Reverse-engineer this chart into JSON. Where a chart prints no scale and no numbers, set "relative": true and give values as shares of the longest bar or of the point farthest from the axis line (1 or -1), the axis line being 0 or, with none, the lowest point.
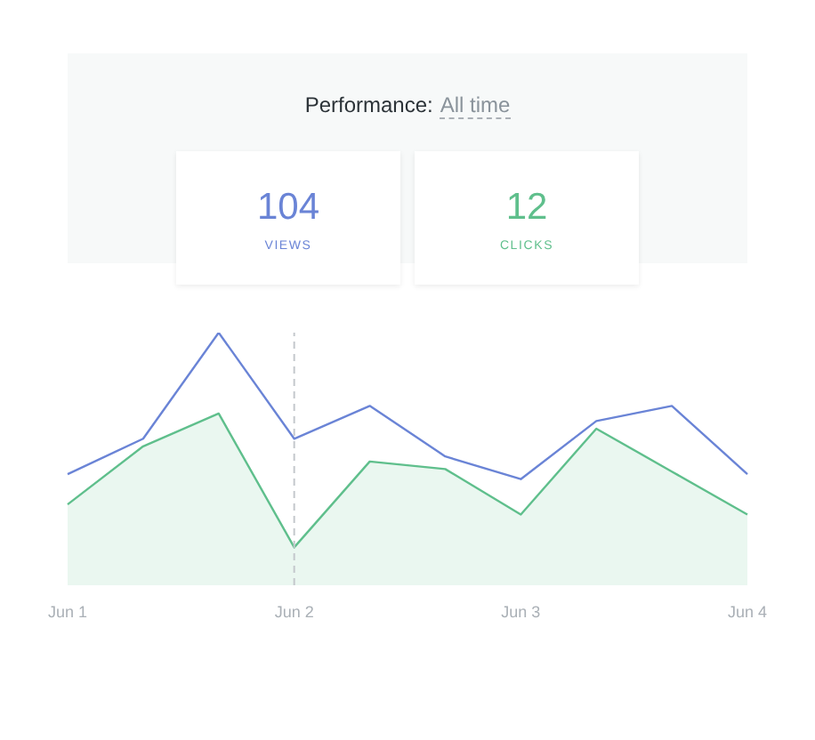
{
  "chart_data": {
    "type": "line",
    "title": "Performance:",
    "subtitle": "All time",
    "relative": true,
    "legend": "top",
    "marker": "none",
    "categories": [
      "Jun 1",
      null,
      null,
      "Jun 2",
      null,
      null,
      "Jun 3",
      null,
      null,
      "Jun 4"
    ],
    "annotations": [
      "104",
      "12"
    ],
    "ref_lines": [
      {
        "axis": "x",
        "value": "Jun 2",
        "line_style": "dashed",
        "color": "#c4c8cc"
      }
    ],
    "series": [
      {
        "name": "VIEWS",
        "color": "#6a84d6",
        "values": [
          0.44,
          0.58,
          1,
          0.58,
          0.71,
          0.51,
          0.42,
          0.65,
          0.71,
          0.44
        ]
      },
      {
        "name": "CLICKS",
        "type": "area",
        "color": "#5fbf8c",
        "values": [
          0.32,
          0.55,
          0.68,
          0.15,
          0.49,
          0.46,
          0.28,
          0.62,
          0.45,
          0.28
        ]
      }
    ]
  }
}
